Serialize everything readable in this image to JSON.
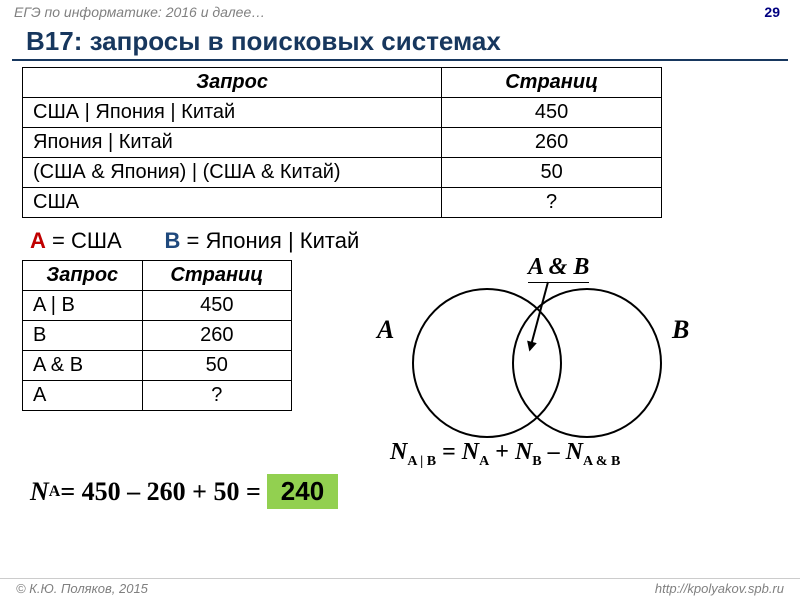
{
  "header": {
    "left": "ЕГЭ по информатике: 2016 и далее…",
    "page": "29"
  },
  "title": "B17: запросы в поисковых системах",
  "table1": {
    "head": {
      "c1": "Запрос",
      "c2": "Страниц"
    },
    "rows": [
      {
        "q": "США | Япония | Китай",
        "n": "450"
      },
      {
        "q": "Япония | Китай",
        "n": "260"
      },
      {
        "q": "(США & Япония) | (США & Китай)",
        "n": "50"
      },
      {
        "q": "США",
        "n": "?"
      }
    ]
  },
  "subst": {
    "a_lbl": "A",
    "a_val": " = США",
    "b_lbl": "B",
    "b_val": " = Япония | Китай"
  },
  "table2": {
    "head": {
      "c1": "Запрос",
      "c2": "Страниц"
    },
    "rows": [
      {
        "q": "A | B",
        "n": "450"
      },
      {
        "q": "B",
        "n": "260"
      },
      {
        "q": "A & B",
        "n": "50"
      },
      {
        "q": "A",
        "n": "?"
      }
    ]
  },
  "venn": {
    "labelA": "A",
    "labelB": "B",
    "labelAB": "A & B",
    "formula_lhs": "N",
    "formula_sub1": "A | B",
    "eq": " = ",
    "formula_sub2": "A",
    "plus": " + ",
    "formula_sub3": "B",
    "minus": " – ",
    "formula_sub4": "A & B"
  },
  "final": {
    "lhs": "N",
    "sub": "A",
    "expr": " = 450 – 260 + 50 = ",
    "answer": "240"
  },
  "footer": {
    "left": "© К.Ю. Поляков, 2015",
    "right": "http://kpolyakov.spb.ru"
  },
  "colors": {
    "title": "#17375e",
    "red": "#c00000",
    "blue": "#1f497d",
    "answer_bg": "#92d050",
    "gray": "#808080"
  }
}
